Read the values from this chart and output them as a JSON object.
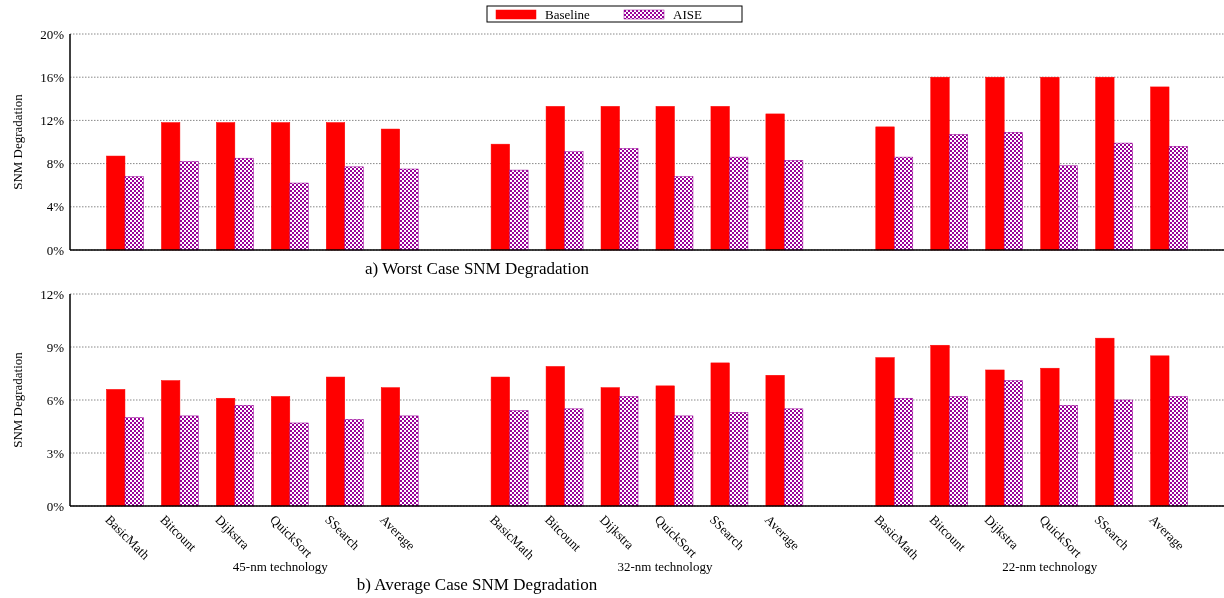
{
  "chart_data": [
    {
      "type": "bar",
      "title": "a) Worst Case SNM Degradation",
      "ylabel": "SNM Degradation",
      "categories": [
        "BasicMath",
        "Bitcount",
        "Dijkstra",
        "QuickSort",
        "SSearch",
        "Average",
        null,
        "BasicMath",
        "Bitcount",
        "Dijkstra",
        "QuickSort",
        "SSearch",
        "Average",
        null,
        "BasicMath",
        "Bitcount",
        "Dijkstra",
        "QuickSort",
        "SSearch",
        "Average"
      ],
      "series": [
        {
          "name": "Baseline",
          "color": "#ff0000",
          "values": [
            8.7,
            11.8,
            11.8,
            11.8,
            11.8,
            11.2,
            null,
            9.8,
            13.3,
            13.3,
            13.3,
            13.3,
            12.6,
            null,
            11.4,
            16.0,
            16.0,
            16.0,
            16.0,
            15.1
          ]
        },
        {
          "name": "AISE",
          "color": "#990099",
          "values": [
            6.8,
            8.2,
            8.5,
            6.2,
            7.7,
            7.5,
            null,
            7.4,
            9.1,
            9.4,
            6.8,
            8.6,
            8.3,
            null,
            8.6,
            10.7,
            10.9,
            7.8,
            9.9,
            9.6
          ]
        }
      ],
      "ylim": [
        0,
        20
      ],
      "yticks": [
        {
          "value": 0,
          "label": "0%"
        },
        {
          "value": 4,
          "label": "4%"
        },
        {
          "value": 8,
          "label": "8%"
        },
        {
          "value": 12,
          "label": "12%"
        },
        {
          "value": 16,
          "label": "16%"
        },
        {
          "value": 20,
          "label": "20%"
        }
      ],
      "grid": "y",
      "legend": "top",
      "tick_labels": "y"
    },
    {
      "type": "bar",
      "title": "b) Average Case SNM Degradation",
      "ylabel": "SNM Degradation",
      "categories": [
        "BasicMath",
        "Bitcount",
        "Dijkstra",
        "QuickSort",
        "SSearch",
        "Average",
        null,
        "BasicMath",
        "Bitcount",
        "Dijkstra",
        "QuickSort",
        "SSearch",
        "Average",
        null,
        "BasicMath",
        "Bitcount",
        "Dijkstra",
        "QuickSort",
        "SSearch",
        "Average"
      ],
      "series": [
        {
          "name": "Baseline",
          "color": "#ff0000",
          "values": [
            6.6,
            7.1,
            6.1,
            6.2,
            7.3,
            6.7,
            null,
            7.3,
            7.9,
            6.7,
            6.8,
            8.1,
            7.4,
            null,
            8.4,
            9.1,
            7.7,
            7.8,
            9.5,
            8.5
          ]
        },
        {
          "name": "AISE",
          "color": "#990099",
          "values": [
            5.0,
            5.1,
            5.7,
            4.7,
            4.9,
            5.1,
            null,
            5.4,
            5.5,
            6.2,
            5.1,
            5.3,
            5.5,
            null,
            6.1,
            6.2,
            7.1,
            5.7,
            6.0,
            6.2
          ]
        }
      ],
      "ylim": [
        0,
        12
      ],
      "yticks": [
        {
          "value": 0,
          "label": "0%"
        },
        {
          "value": 3,
          "label": "3%"
        },
        {
          "value": 6,
          "label": "6%"
        },
        {
          "value": 9,
          "label": "9%"
        },
        {
          "value": 12,
          "label": "12%"
        }
      ],
      "grid": "y",
      "annotations": [
        "45-nm technology",
        "32-nm technology",
        "22-nm technology"
      ]
    }
  ]
}
